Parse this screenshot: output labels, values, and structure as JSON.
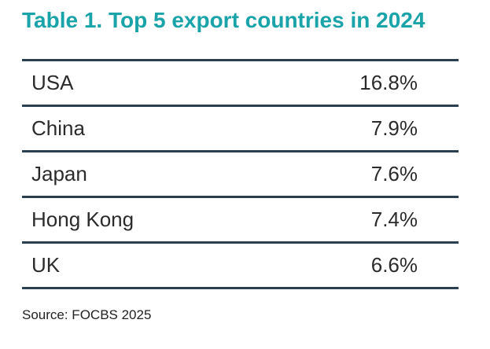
{
  "colors": {
    "title": "#1aa3a9",
    "rule": "#2a3f4f",
    "text": "#2b2b2b"
  },
  "chart_data": {
    "type": "table",
    "title": "Table 1. Top 5 export countries in 2024",
    "rows": [
      {
        "country": "USA",
        "share": "16.8%"
      },
      {
        "country": "China",
        "share": "7.9%"
      },
      {
        "country": "Japan",
        "share": "7.6%"
      },
      {
        "country": "Hong Kong",
        "share": "7.4%"
      },
      {
        "country": "UK",
        "share": "6.6%"
      }
    ],
    "source": "Source: FOCBS 2025"
  }
}
